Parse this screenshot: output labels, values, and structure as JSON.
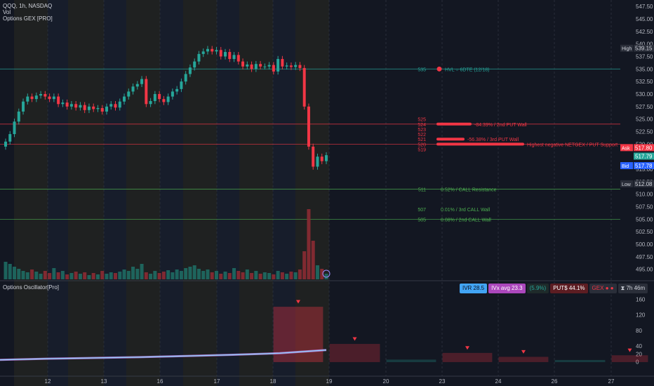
{
  "header": {
    "symbol": "QQQ, 1h, NASDAQ",
    "vol_label": "Vol",
    "indicator": "Options GEX [PRO]",
    "osc_title": "Options Oscillator[Pro]"
  },
  "colors": {
    "bg": "#131722",
    "up": "#26a69a",
    "down": "#f23645",
    "grid": "#2a2e39",
    "accent_blue": "#2962ff",
    "hvl": "#26a69a",
    "put": "#f23645",
    "call": "#4caf50"
  },
  "chart_data": {
    "type": "candlestick",
    "x_labels": [
      "12",
      "13",
      "16",
      "17",
      "18",
      "19",
      "20",
      "23",
      "24",
      "26",
      "27"
    ],
    "y_ticks": [
      495.0,
      497.5,
      500.0,
      502.5,
      505.0,
      507.5,
      510.0,
      512.5,
      515.0,
      517.5,
      520.0,
      522.5,
      525.0,
      527.5,
      530.0,
      532.5,
      535.0,
      537.5,
      540.0,
      542.5,
      545.0,
      547.5
    ],
    "ylim": [
      493.0,
      548.5
    ],
    "price_labels": {
      "high": {
        "label": "High",
        "value": "539.15"
      },
      "ask": {
        "label": "Ask",
        "value": "517.80"
      },
      "last": {
        "label": "",
        "value": "517.79"
      },
      "bid": {
        "label": "Bid",
        "value": "517.78"
      },
      "low": {
        "label": "Low",
        "value": "512.08"
      }
    },
    "closes": [
      520.5,
      522,
      524.5,
      526.5,
      528.5,
      529.5,
      529,
      529.7,
      530,
      529.5,
      529,
      529.5,
      528,
      528.3,
      527.5,
      528,
      527.3,
      527.8,
      526.8,
      527.5,
      527,
      527.2,
      526.5,
      527.5,
      528,
      527.3,
      528.5,
      529.5,
      530.5,
      531.5,
      532,
      533,
      528,
      528.6,
      530,
      529,
      528.4,
      529.5,
      530.5,
      531,
      532.5,
      534,
      535.3,
      536.5,
      538,
      538.5,
      539,
      538.5,
      538.8,
      537.5,
      538.4,
      537,
      537.8,
      536.5,
      535.5,
      535.9,
      535,
      536,
      535.5,
      535.5,
      535.8,
      534.5,
      537,
      535.5,
      535.7,
      535.4,
      535.8,
      535.2,
      527.5,
      519.5,
      515.5,
      517.5,
      516.6,
      517.79
    ],
    "volumes": [
      0.25,
      0.22,
      0.18,
      0.15,
      0.12,
      0.1,
      0.14,
      0.11,
      0.08,
      0.12,
      0.09,
      0.16,
      0.1,
      0.12,
      0.07,
      0.09,
      0.11,
      0.08,
      0.1,
      0.06,
      0.09,
      0.07,
      0.12,
      0.08,
      0.1,
      0.09,
      0.11,
      0.14,
      0.12,
      0.18,
      0.15,
      0.22,
      0.1,
      0.08,
      0.12,
      0.09,
      0.11,
      0.13,
      0.1,
      0.14,
      0.12,
      0.16,
      0.18,
      0.2,
      0.15,
      0.12,
      0.14,
      0.1,
      0.12,
      0.08,
      0.11,
      0.09,
      0.16,
      0.12,
      0.1,
      0.14,
      0.09,
      0.12,
      0.08,
      0.1,
      0.09,
      0.07,
      0.12,
      0.1,
      0.08,
      0.11,
      0.1,
      0.14,
      0.4,
      1.0,
      0.55,
      0.2,
      0.15,
      0.08
    ],
    "levels": [
      {
        "price": 535,
        "tag": "535",
        "label": "HVL ○ 6DTE (12/18)",
        "color": "#26a69a",
        "line": true
      },
      {
        "price": 525,
        "tag": "525",
        "label": "",
        "color": "#f23645",
        "line": false
      },
      {
        "price": 524,
        "tag": "524",
        "label": "-84.39% / 2nd PUT Wall",
        "color": "#f23645",
        "line": true
      },
      {
        "price": 523,
        "tag": "523",
        "label": "",
        "color": "#f23645",
        "line": false
      },
      {
        "price": 522,
        "tag": "522",
        "label": "",
        "color": "#f23645",
        "line": false
      },
      {
        "price": 521,
        "tag": "521",
        "label": "-56.38% / 3rd PUT Wall",
        "color": "#f23645",
        "line": false
      },
      {
        "price": 520,
        "tag": "520",
        "label": "Highest negative NETGEX / PUT Support",
        "color": "#f23645",
        "line": true
      },
      {
        "price": 519,
        "tag": "519",
        "label": "",
        "color": "#f23645",
        "line": false
      },
      {
        "price": 511,
        "tag": "511",
        "label": "0.52% / CALL Resistance",
        "color": "#4caf50",
        "line": true
      },
      {
        "price": 507,
        "tag": "507",
        "label": "0.01% / 3rd CALL Wall",
        "color": "#4caf50",
        "line": false
      },
      {
        "price": 505,
        "tag": "505",
        "label": "0.08% / 2nd CALL Wall",
        "color": "#4caf50",
        "line": true
      }
    ],
    "osc": {
      "y_ticks": [
        0,
        20,
        40,
        80,
        120,
        160
      ],
      "ylim": [
        -8,
        175
      ],
      "bars": [
        {
          "day": "18",
          "value": 140
        },
        {
          "day": "19",
          "value": 45
        },
        {
          "day": "20",
          "value": 5
        },
        {
          "day": "23",
          "value": 22
        },
        {
          "day": "24",
          "value": 12
        },
        {
          "day": "26",
          "value": 4
        },
        {
          "day": "27",
          "value": 16
        }
      ],
      "line_values": [
        5,
        8,
        10,
        12,
        15,
        18,
        22,
        30
      ]
    },
    "osc_stats": {
      "ivr": "IVR 28.5",
      "ivx": "IVx avg 23.3",
      "ivx_chg": "(5.9%)",
      "puts": "PUT$ 44.1%",
      "gex": "GEX",
      "timer": "7h 46m"
    }
  }
}
